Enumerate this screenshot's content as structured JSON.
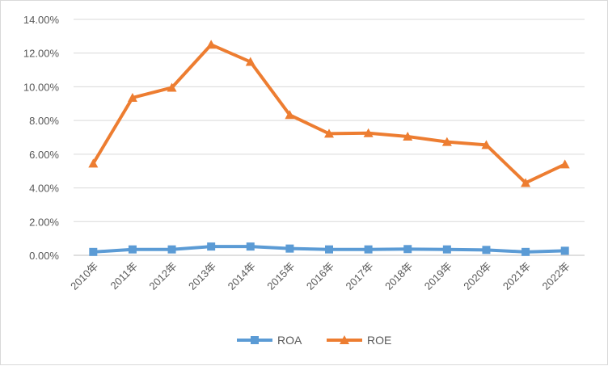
{
  "chart_data": {
    "type": "line",
    "title": "",
    "xlabel": "",
    "ylabel": "",
    "categories": [
      "2010年",
      "2011年",
      "2012年",
      "2013年",
      "2014年",
      "2015年",
      "2016年",
      "2017年",
      "2018年",
      "2019年",
      "2020年",
      "2021年",
      "2022年"
    ],
    "ylim": [
      0,
      0.14
    ],
    "y_ticks": [
      0,
      0.02,
      0.04,
      0.06,
      0.08,
      0.1,
      0.12,
      0.14
    ],
    "y_tick_labels": [
      "0.00%",
      "2.00%",
      "4.00%",
      "6.00%",
      "8.00%",
      "10.00%",
      "12.00%",
      "14.00%"
    ],
    "grid": "horizontal",
    "legend_position": "bottom",
    "series": [
      {
        "name": "ROA",
        "marker": "square",
        "color": "#5B9BD5",
        "values": [
          0.002,
          0.0035,
          0.0035,
          0.0052,
          0.0052,
          0.004,
          0.0035,
          0.0035,
          0.0037,
          0.0035,
          0.0032,
          0.002,
          0.0027
        ]
      },
      {
        "name": "ROE",
        "marker": "triangle",
        "color": "#ED7D31",
        "values": [
          0.0545,
          0.0935,
          0.0995,
          0.125,
          0.1148,
          0.0833,
          0.0722,
          0.0725,
          0.0705,
          0.0673,
          0.0655,
          0.043,
          0.054
        ]
      }
    ]
  },
  "colors": {
    "grid": "#d9d9d9",
    "axis": "#bfbfbf",
    "text": "#595959"
  }
}
